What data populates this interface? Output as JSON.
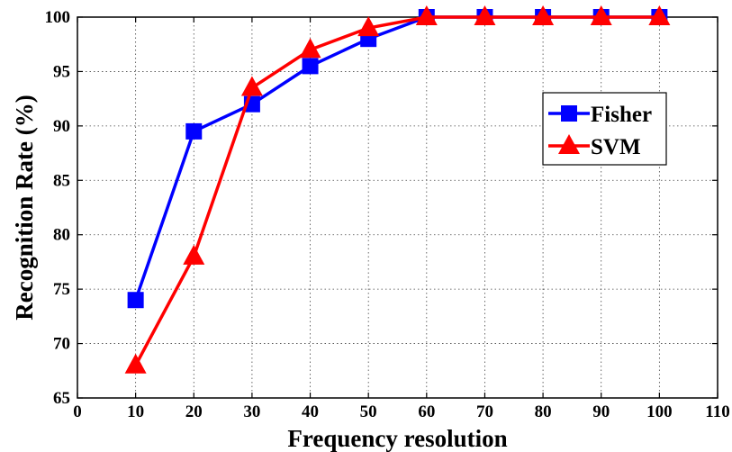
{
  "chart_data": {
    "type": "line",
    "xlabel": "Frequency resolution",
    "ylabel": "Recognition Rate (%)",
    "xlim": [
      0,
      110
    ],
    "ylim": [
      65,
      100
    ],
    "xticks": [
      0,
      10,
      20,
      30,
      40,
      50,
      60,
      70,
      80,
      90,
      100,
      110
    ],
    "yticks": [
      65,
      70,
      75,
      80,
      85,
      90,
      95,
      100
    ],
    "grid": true,
    "legend_position": "right",
    "x": [
      10,
      20,
      30,
      40,
      50,
      60,
      70,
      80,
      90,
      100
    ],
    "series": [
      {
        "name": "Fisher",
        "color": "#0000ff",
        "marker": "square",
        "values": [
          74,
          89.5,
          92,
          95.5,
          98,
          100,
          100,
          100,
          100,
          100
        ]
      },
      {
        "name": "SVM",
        "color": "#ff0000",
        "marker": "triangle",
        "values": [
          68,
          78,
          93.5,
          97,
          99,
          100,
          100,
          100,
          100,
          100
        ]
      }
    ]
  }
}
